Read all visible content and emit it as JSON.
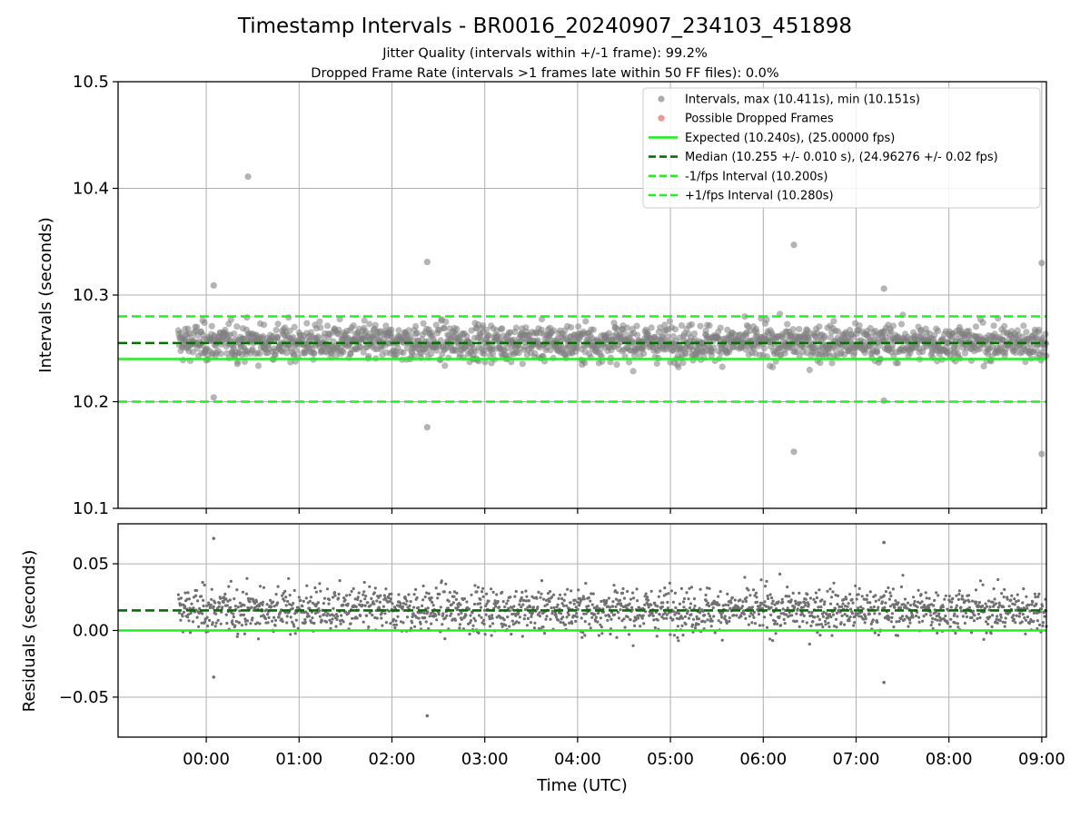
{
  "chart_data": [
    {
      "type": "scatter",
      "title": "Timestamp Intervals - BR0016_20240907_234103_451898",
      "subtitle_1": "Jitter Quality (intervals within +/-1 frame): 99.2%",
      "subtitle_2": "Dropped Frame Rate (intervals >1 frames late within 50 FF files): 0.0%",
      "ylabel": "Intervals (seconds)",
      "ylim": [
        10.1,
        10.5
      ],
      "yticks": [
        10.1,
        10.2,
        10.3,
        10.4,
        10.5
      ],
      "ytick_labels": [
        "10.1",
        "10.2",
        "10.3",
        "10.4",
        "10.5"
      ],
      "xlim_hours": [
        -0.95,
        9.05
      ],
      "xticks_hours": [
        0,
        1,
        2,
        3,
        4,
        5,
        6,
        7,
        8,
        9
      ],
      "xtick_labels": [
        "00:00",
        "01:00",
        "02:00",
        "03:00",
        "04:00",
        "05:00",
        "06:00",
        "07:00",
        "08:00",
        "09:00"
      ],
      "grid": true,
      "legend_position": "top-right",
      "series": [
        {
          "name": "Intervals, max (10.411s), min (10.151s)",
          "kind": "points",
          "color": "#808080",
          "x_range_hours": [
            -0.3,
            9.05
          ],
          "typical_range": [
            10.23,
            10.28
          ],
          "outliers": [
            {
              "x": 0.45,
              "y": 10.411
            },
            {
              "x": 0.08,
              "y": 10.309
            },
            {
              "x": 0.08,
              "y": 10.204
            },
            {
              "x": 2.38,
              "y": 10.331
            },
            {
              "x": 2.38,
              "y": 10.176
            },
            {
              "x": 6.33,
              "y": 10.347
            },
            {
              "x": 6.33,
              "y": 10.153
            },
            {
              "x": 7.3,
              "y": 10.306
            },
            {
              "x": 7.3,
              "y": 10.201
            },
            {
              "x": 9.0,
              "y": 10.33
            },
            {
              "x": 9.0,
              "y": 10.151
            }
          ]
        },
        {
          "name": "Possible Dropped Frames",
          "kind": "points",
          "color": "#f05a5a",
          "points": []
        },
        {
          "name": "Expected (10.240s), (25.00000 fps)",
          "kind": "hline",
          "y": 10.24,
          "color": "#22ee22",
          "dash": "solid"
        },
        {
          "name": "Median (10.255 +/- 0.010 s), (24.96276 +/- 0.02 fps)",
          "kind": "hline",
          "y": 10.255,
          "color": "#007000",
          "dash": "dashed"
        },
        {
          "name": "-1/fps Interval (10.200s)",
          "kind": "hline",
          "y": 10.2,
          "color": "#22ee22",
          "dash": "dashed"
        },
        {
          "name": "+1/fps Interval (10.280s)",
          "kind": "hline",
          "y": 10.28,
          "color": "#22ee22",
          "dash": "dashed"
        }
      ]
    },
    {
      "type": "scatter",
      "ylabel": "Residuals (seconds)",
      "xlabel": "Time (UTC)",
      "ylim": [
        -0.08,
        0.08
      ],
      "yticks": [
        -0.05,
        0.0,
        0.05
      ],
      "ytick_labels": [
        "−0.05",
        "0.00",
        "0.05"
      ],
      "xlim_hours": [
        -0.95,
        9.05
      ],
      "xticks_hours": [
        0,
        1,
        2,
        3,
        4,
        5,
        6,
        7,
        8,
        9
      ],
      "xtick_labels": [
        "00:00",
        "01:00",
        "02:00",
        "03:00",
        "04:00",
        "05:00",
        "06:00",
        "07:00",
        "08:00",
        "09:00"
      ],
      "grid": true,
      "series": [
        {
          "kind": "points",
          "color": "#707070",
          "x_range_hours": [
            -0.3,
            9.05
          ],
          "typical_range": [
            -0.01,
            0.04
          ],
          "outliers": [
            {
              "x": 0.08,
              "y": 0.069
            },
            {
              "x": 0.08,
              "y": -0.035
            },
            {
              "x": 2.38,
              "y": -0.064
            },
            {
              "x": 7.3,
              "y": 0.066
            },
            {
              "x": 7.3,
              "y": -0.039
            }
          ]
        },
        {
          "kind": "hline",
          "y": 0.0,
          "color": "#22ee22",
          "dash": "solid"
        },
        {
          "kind": "hline",
          "y": 0.015,
          "color": "#007000",
          "dash": "dashed"
        }
      ]
    }
  ]
}
